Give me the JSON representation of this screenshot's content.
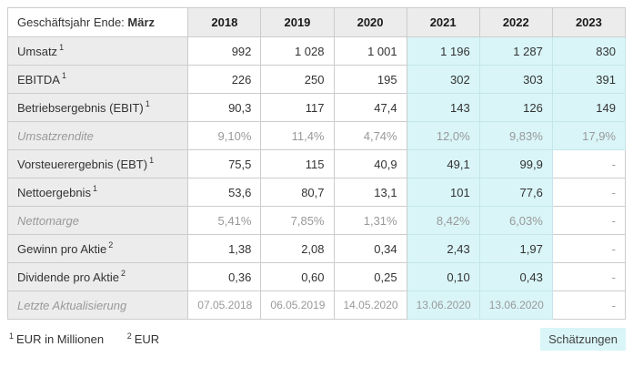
{
  "colors": {
    "estimate_bg": "#d9f5f8",
    "header_bg": "#ececec",
    "border": "#cccccc",
    "estimate_border": "#c4e6ea",
    "text": "#333333",
    "muted": "#999999"
  },
  "table": {
    "header": {
      "label_prefix": "Geschäftsjahr Ende: ",
      "label_bold": "März",
      "years": [
        "2018",
        "2019",
        "2020",
        "2021",
        "2022",
        "2023"
      ]
    },
    "rows": [
      {
        "label": "Umsatz",
        "sup": "1",
        "style": "normal",
        "type": "number",
        "values": [
          "992",
          "1 028",
          "1 001",
          "1 196",
          "1 287",
          "830"
        ],
        "estimates": [
          false,
          false,
          false,
          true,
          true,
          true
        ]
      },
      {
        "label": "EBITDA",
        "sup": "1",
        "style": "normal",
        "type": "number",
        "values": [
          "226",
          "250",
          "195",
          "302",
          "303",
          "391"
        ],
        "estimates": [
          false,
          false,
          false,
          true,
          true,
          true
        ]
      },
      {
        "label": "Betriebsergebnis (EBIT)",
        "sup": "1",
        "style": "normal",
        "type": "number",
        "values": [
          "90,3",
          "117",
          "47,4",
          "143",
          "126",
          "149"
        ],
        "estimates": [
          false,
          false,
          false,
          true,
          true,
          true
        ]
      },
      {
        "label": "Umsatzrendite",
        "sup": "",
        "style": "muted",
        "type": "ratio",
        "values": [
          "9,10%",
          "11,4%",
          "4,74%",
          "12,0%",
          "9,83%",
          "17,9%"
        ],
        "estimates": [
          false,
          false,
          false,
          true,
          true,
          true
        ]
      },
      {
        "label": "Vorsteuerergebnis (EBT)",
        "sup": "1",
        "style": "normal",
        "type": "number",
        "values": [
          "75,5",
          "115",
          "40,9",
          "49,1",
          "99,9",
          "-"
        ],
        "estimates": [
          false,
          false,
          false,
          true,
          true,
          false
        ]
      },
      {
        "label": "Nettoergebnis",
        "sup": "1",
        "style": "normal",
        "type": "number",
        "values": [
          "53,6",
          "80,7",
          "13,1",
          "101",
          "77,6",
          "-"
        ],
        "estimates": [
          false,
          false,
          false,
          true,
          true,
          false
        ]
      },
      {
        "label": "Nettomarge",
        "sup": "",
        "style": "muted",
        "type": "ratio",
        "values": [
          "5,41%",
          "7,85%",
          "1,31%",
          "8,42%",
          "6,03%",
          "-"
        ],
        "estimates": [
          false,
          false,
          false,
          true,
          true,
          false
        ]
      },
      {
        "label": "Gewinn pro Aktie",
        "sup": "2",
        "style": "normal",
        "type": "number",
        "values": [
          "1,38",
          "2,08",
          "0,34",
          "2,43",
          "1,97",
          "-"
        ],
        "estimates": [
          false,
          false,
          false,
          true,
          true,
          false
        ]
      },
      {
        "label": "Dividende pro Aktie",
        "sup": "2",
        "style": "normal",
        "type": "number",
        "values": [
          "0,36",
          "0,60",
          "0,25",
          "0,10",
          "0,43",
          "-"
        ],
        "estimates": [
          false,
          false,
          false,
          true,
          true,
          false
        ]
      },
      {
        "label": "Letzte Aktualisierung",
        "sup": "",
        "style": "muted",
        "type": "date",
        "values": [
          "07.05.2018",
          "06.05.2019",
          "14.05.2020",
          "13.06.2020",
          "13.06.2020",
          "-"
        ],
        "estimates": [
          false,
          false,
          false,
          true,
          true,
          false
        ]
      }
    ]
  },
  "footnotes": [
    {
      "sup": "1",
      "text": "EUR in Millionen"
    },
    {
      "sup": "2",
      "text": "EUR"
    }
  ],
  "legend": {
    "estimates_label": "Schätzungen"
  }
}
